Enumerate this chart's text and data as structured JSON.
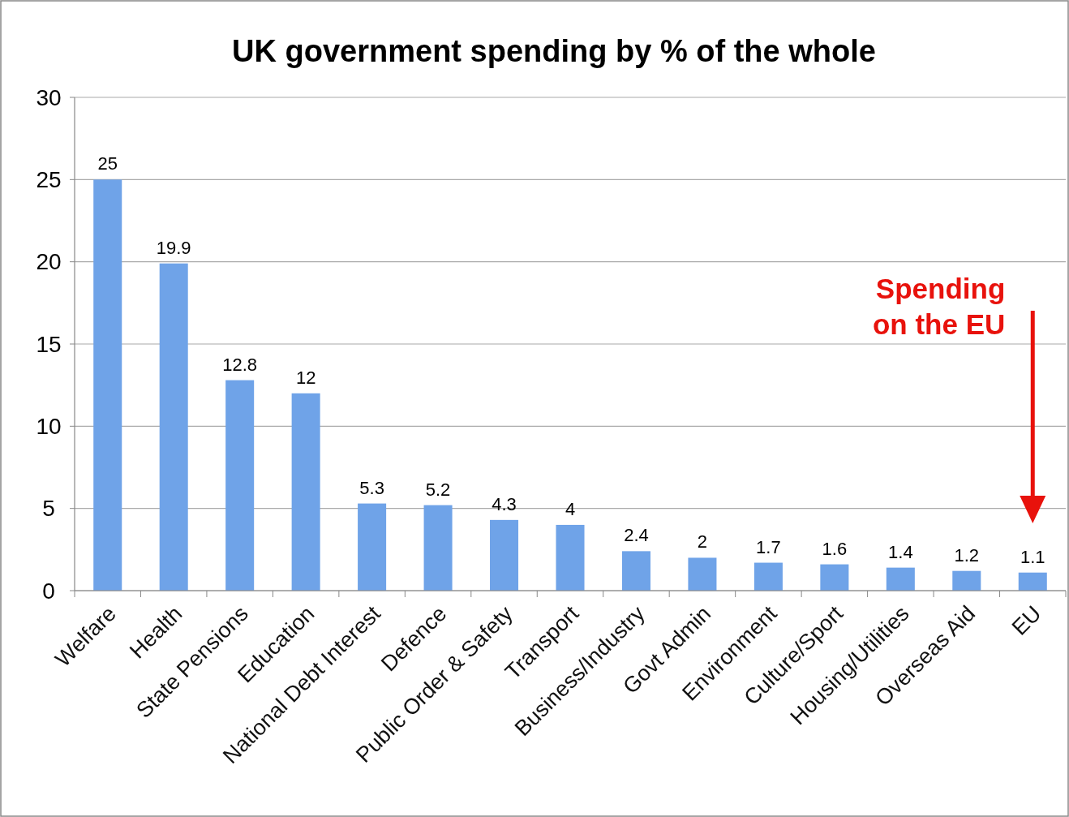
{
  "chart_data": {
    "type": "bar",
    "title": "UK government spending by % of the whole",
    "categories": [
      "Welfare",
      "Health",
      "State Pensions",
      "Education",
      "National Debt Interest",
      "Defence",
      "Public Order & Safety",
      "Transport",
      "Business/Industry",
      "Govt Admin",
      "Environment",
      "Culture/Sport",
      "Housing/Utilities",
      "Overseas Aid",
      "EU"
    ],
    "values": [
      25,
      19.9,
      12.8,
      12,
      5.3,
      5.2,
      4.3,
      4,
      2.4,
      2,
      1.7,
      1.6,
      1.4,
      1.2,
      1.1
    ],
    "color": "#6fa3e8",
    "ylim": [
      0,
      30
    ],
    "yticks": [
      0,
      5,
      10,
      15,
      20,
      25,
      30
    ],
    "grid": "y",
    "data_labels": true,
    "annotations": [
      "Spending\non the EU"
    ]
  }
}
